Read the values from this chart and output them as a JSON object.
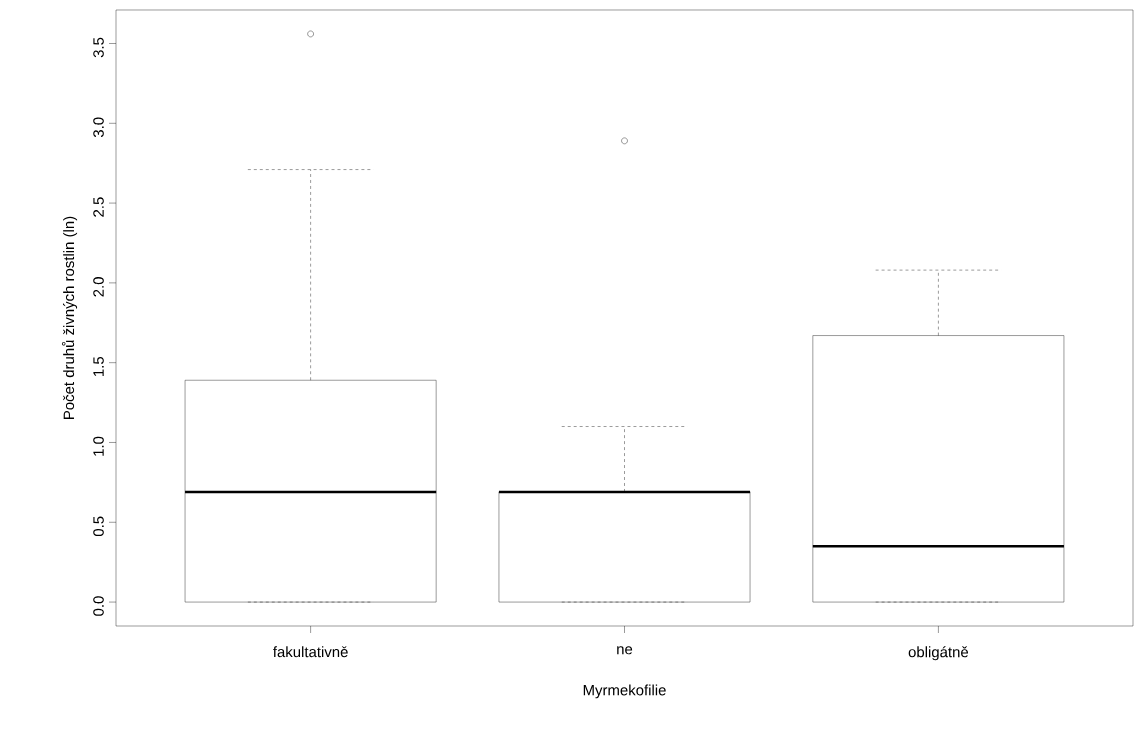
{
  "chart_data": {
    "type": "box",
    "xlabel": "Myrmekofilie",
    "ylabel": "Počet druhů živných rostlin (ln)",
    "categories": [
      "fakultativně",
      "ne",
      "obligátně"
    ],
    "boxes": [
      {
        "low": 0,
        "q1": 0,
        "median": 0.69,
        "q3": 1.39,
        "high": 2.71,
        "outliers": [
          3.56
        ]
      },
      {
        "low": 0,
        "q1": 0,
        "median": 0.69,
        "q3": 0.69,
        "high": 1.1,
        "outliers": [
          2.89
        ]
      },
      {
        "low": 0,
        "q1": 0,
        "median": 0.35,
        "q3": 1.67,
        "high": 2.08
      }
    ],
    "ylim": [
      -0.15,
      3.71
    ],
    "yticks": [
      {
        "value": 0,
        "label": "0.0"
      },
      {
        "value": 0.5,
        "label": "0.5"
      },
      {
        "value": 1,
        "label": "1.0"
      },
      {
        "value": 1.5,
        "label": "1.5"
      },
      {
        "value": 2,
        "label": "2.0"
      },
      {
        "value": 2.5,
        "label": "2.5"
      },
      {
        "value": 3,
        "label": "3.0"
      },
      {
        "value": 3.5,
        "label": "3.5"
      }
    ]
  }
}
